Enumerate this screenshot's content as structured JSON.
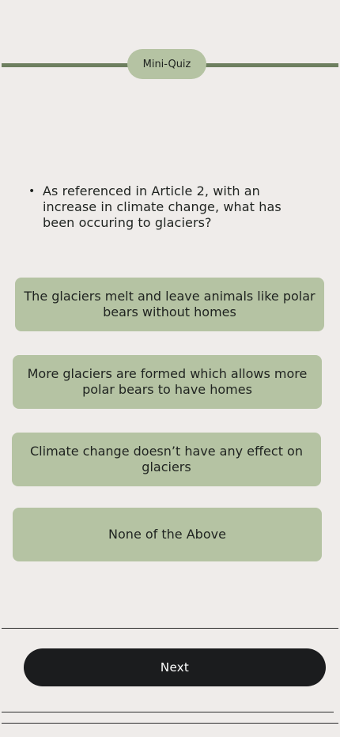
{
  "header": {
    "title": "Mini-Quiz"
  },
  "question": {
    "bullet": "•",
    "text": "As referenced in Article 2, with an increase in climate change, what has been occuring to glaciers?"
  },
  "answers": [
    "The glaciers melt and leave animals like polar bears without homes",
    "More glaciers are formed which allows more polar bears to have homes",
    "Climate change doesn’t have any effect on glaciers",
    "None of the Above"
  ],
  "footer": {
    "next_label": "Next"
  },
  "colors": {
    "background": "#efecea",
    "accent_line": "#6d7f5f",
    "answer_fill": "#b5c3a3",
    "button_fill": "#1b1c1e"
  }
}
